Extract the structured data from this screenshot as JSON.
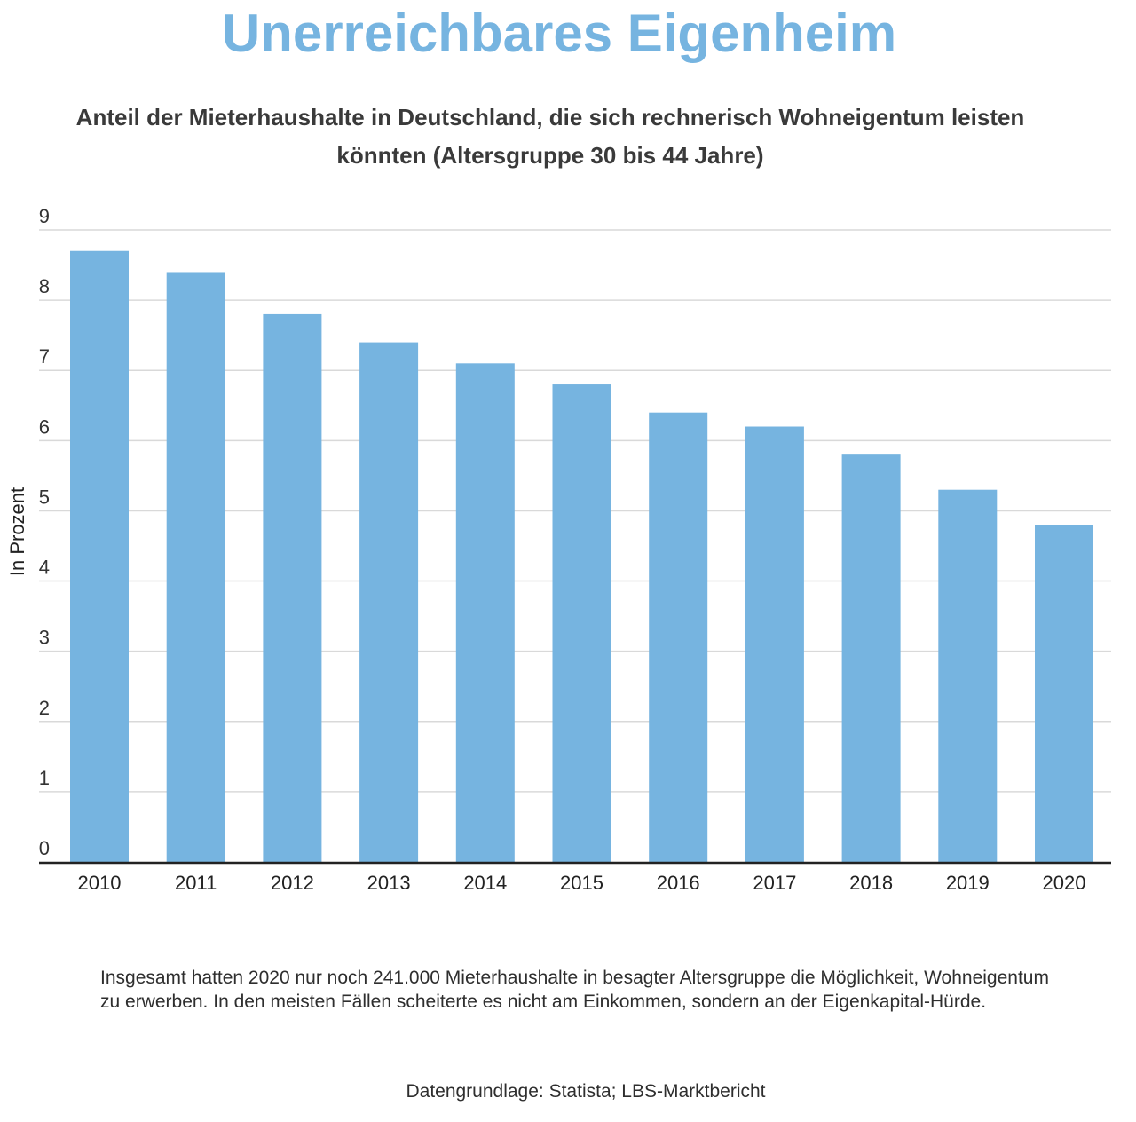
{
  "header": {
    "title": "Unerreichbares Eigenheim",
    "subtitle": "Anteil der Mieterhaushalte in Deutschland, die sich rechnerisch Wohneigentum leisten könnten (Altersgruppe 30 bis 44 Jahre)"
  },
  "chart_data": {
    "type": "bar",
    "categories": [
      "2010",
      "2011",
      "2012",
      "2013",
      "2014",
      "2015",
      "2016",
      "2017",
      "2018",
      "2019",
      "2020"
    ],
    "values": [
      8.7,
      8.4,
      7.8,
      7.4,
      7.1,
      6.8,
      6.4,
      6.2,
      5.8,
      5.3,
      4.8
    ],
    "xlabel": "",
    "ylabel": "In Prozent",
    "ylim": [
      0,
      9
    ],
    "yticks": [
      0,
      1,
      2,
      3,
      4,
      5,
      6,
      7,
      8,
      9
    ],
    "grid": true,
    "legend": "none",
    "bar_color": "#76b4e0"
  },
  "footer": {
    "note": "Insgesamt hatten 2020 nur noch 241.000 Mieterhaushalte in besagter Altersgruppe die Möglichkeit, Wohneigentum zu erwerben. In den meisten Fällen scheiterte es nicht am Einkommen, sondern an der Eigenkapital-Hürde.",
    "source": "Datengrundlage: Statista; LBS-Marktbericht"
  },
  "colors": {
    "title": "#76b4e0",
    "bar": "#76b4e0",
    "grid": "#d9d9d9",
    "axis": "#222222",
    "text": "#333333"
  }
}
